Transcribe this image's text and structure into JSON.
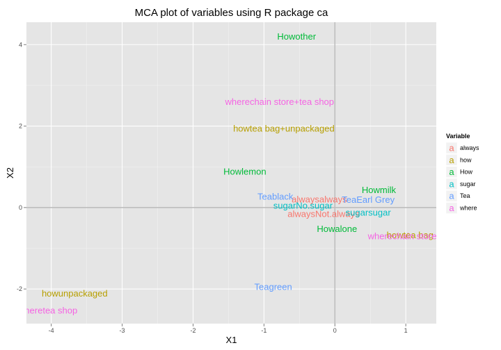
{
  "chart_data": {
    "type": "scatter",
    "title": "MCA plot of variables using R package ca",
    "xlabel": "X1",
    "ylabel": "X2",
    "xlim": [
      -4.35,
      1.43
    ],
    "ylim": [
      -2.85,
      4.55
    ],
    "x_ticks": [
      -4,
      -3,
      -2,
      -1,
      0,
      1
    ],
    "y_ticks": [
      -2,
      0,
      2,
      4
    ],
    "x_tick_labels": [
      "-4",
      "-3",
      "-2",
      "-1",
      "0",
      "1"
    ],
    "y_tick_labels": [
      "-2",
      "0",
      "2",
      "4"
    ],
    "reference_lines": {
      "x": 0,
      "y": 0
    },
    "grid": true,
    "legend": {
      "title": "Variable",
      "placement": "right",
      "glyph": "a"
    },
    "series": [
      {
        "name": "always",
        "color": "#F8766D",
        "points": [
          {
            "label": "alwaysalways",
            "x": -0.22,
            "y": 0.2
          },
          {
            "label": "alwaysNot.always",
            "x": -0.16,
            "y": -0.16
          }
        ]
      },
      {
        "name": "how",
        "color": "#B79F00",
        "points": [
          {
            "label": "howtea bag+unpackaged",
            "x": -0.72,
            "y": 1.94
          },
          {
            "label": "howunpackaged",
            "x": -3.67,
            "y": -2.11
          },
          {
            "label": "howtea bag",
            "x": 1.06,
            "y": -0.68
          }
        ]
      },
      {
        "name": "How",
        "color": "#00BA38",
        "points": [
          {
            "label": "Howother",
            "x": -0.54,
            "y": 4.2
          },
          {
            "label": "Howlemon",
            "x": -1.27,
            "y": 0.88
          },
          {
            "label": "Howmilk",
            "x": 0.62,
            "y": 0.43
          },
          {
            "label": "Howalone",
            "x": 0.03,
            "y": -0.52
          }
        ]
      },
      {
        "name": "sugar",
        "color": "#00BFC4",
        "points": [
          {
            "label": "sugarNo.sugar",
            "x": -0.45,
            "y": 0.05
          },
          {
            "label": "sugarsugar",
            "x": 0.47,
            "y": -0.12
          }
        ]
      },
      {
        "name": "Tea",
        "color": "#619CFF",
        "points": [
          {
            "label": "Teablack",
            "x": -0.84,
            "y": 0.27
          },
          {
            "label": "TeaEarl Grey",
            "x": 0.47,
            "y": 0.19
          },
          {
            "label": "Teagreen",
            "x": -0.87,
            "y": -1.95
          }
        ]
      },
      {
        "name": "where",
        "color": "#F564E3",
        "points": [
          {
            "label": "wherechain store+tea shop",
            "x": -0.78,
            "y": 2.6
          },
          {
            "label": "wherechain store",
            "x": 0.95,
            "y": -0.7
          },
          {
            "label": "wheretea shop",
            "x": -4.05,
            "y": -2.53
          }
        ]
      }
    ]
  }
}
